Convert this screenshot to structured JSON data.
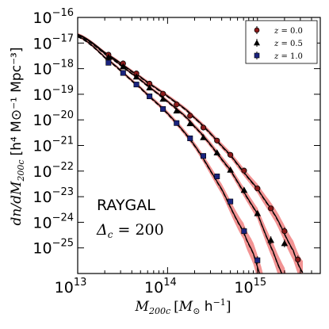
{
  "chart_data": {
    "type": "scatter",
    "title": "",
    "xlabel": {
      "main": "M",
      "sub": "200c",
      "units_open": "[",
      "units_sym": "M",
      "units_sub": "⊙",
      "units_rest": " h",
      "units_exp": "−1",
      "units_close": "]"
    },
    "ylabel": {
      "text": "dn/dM",
      "sub": "200c",
      "units": "[h⁴ M⊙⁻¹ Mpc⁻³]"
    },
    "xscale": "log",
    "yscale": "log",
    "xlim": [
      10000000000000.0,
      5000000000000000.0
    ],
    "ylim": [
      1e-26,
      1e-16
    ],
    "x_ticks": [
      {
        "value": 10000000000000.0,
        "base": "10",
        "exp": "13"
      },
      {
        "value": 100000000000000.0,
        "base": "10",
        "exp": "14"
      },
      {
        "value": 1000000000000000.0,
        "base": "10",
        "exp": "15"
      }
    ],
    "y_ticks": [
      {
        "value": 1e-16,
        "base": "10",
        "exp": "−16"
      },
      {
        "value": 1e-17,
        "base": "10",
        "exp": "−17"
      },
      {
        "value": 1e-18,
        "base": "10",
        "exp": "−18"
      },
      {
        "value": 1e-19,
        "base": "10",
        "exp": "−19"
      },
      {
        "value": 1e-20,
        "base": "10",
        "exp": "−20"
      },
      {
        "value": 1e-21,
        "base": "10",
        "exp": "−21"
      },
      {
        "value": 1e-22,
        "base": "10",
        "exp": "−22"
      },
      {
        "value": 1e-23,
        "base": "10",
        "exp": "−23"
      },
      {
        "value": 1e-24,
        "base": "10",
        "exp": "−24"
      },
      {
        "value": 1e-25,
        "base": "10",
        "exp": "−25"
      }
    ],
    "annotations": [
      {
        "text": "RAYGAL"
      },
      {
        "text": "Δc = 200",
        "symbol": "Δ",
        "sub": "c",
        "rest": " = 200"
      }
    ],
    "legend_position": "top-right",
    "colors": {
      "band": "#f08080",
      "curve": "#000000",
      "z0": "#8b1a1a",
      "z05": "#000000",
      "z1": "#1a237e"
    },
    "series": [
      {
        "name": "z = 0.0",
        "label_var": "z",
        "label_val": " = 0.0",
        "marker": "circle",
        "x": [
          22000000000000.0,
          32000000000000.0,
          45000000000000.0,
          63000000000000.0,
          89000000000000.0,
          126000000000000.0,
          178000000000000.0,
          250000000000000.0,
          355000000000000.0,
          500000000000000.0,
          710000000000000.0,
          1000000000000000.0,
          1410000000000000.0,
          2000000000000000.0,
          2820000000000000.0
        ],
        "y": [
          3.5e-18,
          1.6e-18,
          6.5e-19,
          2.6e-19,
          1.05e-19,
          4e-20,
          1.45e-20,
          5e-21,
          1.55e-21,
          4.3e-22,
          1.05e-22,
          2.1e-23,
          3.5e-24,
          4.5e-25,
          3.5e-26
        ],
        "model_x": [
          10000000000000.0,
          20000000000000.0,
          50000000000000.0,
          100000000000000.0,
          200000000000000.0,
          500000000000000.0,
          1000000000000000.0,
          1600000000000000.0,
          2500000000000000.0,
          3200000000000000.0
        ],
        "model_y": [
          2.2e-17,
          4.3e-18,
          4.8e-19,
          8.5e-20,
          1.2e-20,
          4.3e-22,
          2.1e-23,
          1.7e-24,
          8e-26,
          1.1e-26
        ],
        "band_frac": [
          0.05,
          0.05,
          0.06,
          0.07,
          0.08,
          0.12,
          0.18,
          0.26,
          0.38,
          0.45
        ]
      },
      {
        "name": "z = 0.5",
        "label_var": "z",
        "label_val": " = 0.5",
        "marker": "triangle",
        "x": [
          22000000000000.0,
          32000000000000.0,
          45000000000000.0,
          63000000000000.0,
          89000000000000.0,
          126000000000000.0,
          178000000000000.0,
          250000000000000.0,
          355000000000000.0,
          500000000000000.0,
          710000000000000.0,
          1000000000000000.0,
          1410000000000000.0,
          2000000000000000.0
        ],
        "y": [
          2.8e-18,
          1.2e-18,
          4.8e-19,
          1.8e-19,
          6.5e-20,
          2.25e-20,
          7.2e-21,
          2.05e-21,
          5.2e-22,
          1.1e-22,
          1.8e-23,
          2.2e-24,
          2e-25,
          1.5e-25
        ],
        "model_x": [
          10000000000000.0,
          20000000000000.0,
          50000000000000.0,
          100000000000000.0,
          200000000000000.0,
          500000000000000.0,
          1000000000000000.0,
          1500000000000000.0,
          2000000000000000.0,
          2300000000000000.0
        ],
        "model_y": [
          2.1e-17,
          3.9e-18,
          3.7e-19,
          5.3e-20,
          5.5e-21,
          1.1e-22,
          2.2e-24,
          7e-26,
          6e-27,
          1e-27
        ],
        "band_frac": [
          0.05,
          0.05,
          0.06,
          0.07,
          0.09,
          0.14,
          0.22,
          0.34,
          0.45,
          0.5
        ]
      },
      {
        "name": "z = 1.0",
        "label_var": "z",
        "label_val": " = 1.0",
        "marker": "square",
        "x": [
          22000000000000.0,
          32000000000000.0,
          45000000000000.0,
          63000000000000.0,
          89000000000000.0,
          126000000000000.0,
          178000000000000.0,
          250000000000000.0,
          355000000000000.0,
          500000000000000.0,
          710000000000000.0,
          1000000000000000.0
        ],
        "y": [
          1.7e-18,
          6.8e-19,
          2.4e-19,
          8.3e-20,
          2.65e-20,
          7.5e-21,
          1.9e-21,
          3.9e-22,
          6.2e-23,
          6.5e-24,
          4.5e-25,
          3.3e-26
        ],
        "model_x": [
          10000000000000.0,
          20000000000000.0,
          50000000000000.0,
          100000000000000.0,
          200000000000000.0,
          400000000000000.0,
          700000000000000.0,
          900000000000000.0,
          1100000000000000.0,
          1300000000000000.0
        ],
        "model_y": [
          1.85e-17,
          2.8e-18,
          1.8e-19,
          1.8e-20,
          1e-21,
          2e-23,
          4.5e-25,
          6e-26,
          6e-27,
          6e-28
        ],
        "band_frac": [
          0.05,
          0.06,
          0.07,
          0.09,
          0.12,
          0.2,
          0.32,
          0.42,
          0.5,
          0.55
        ]
      }
    ]
  }
}
